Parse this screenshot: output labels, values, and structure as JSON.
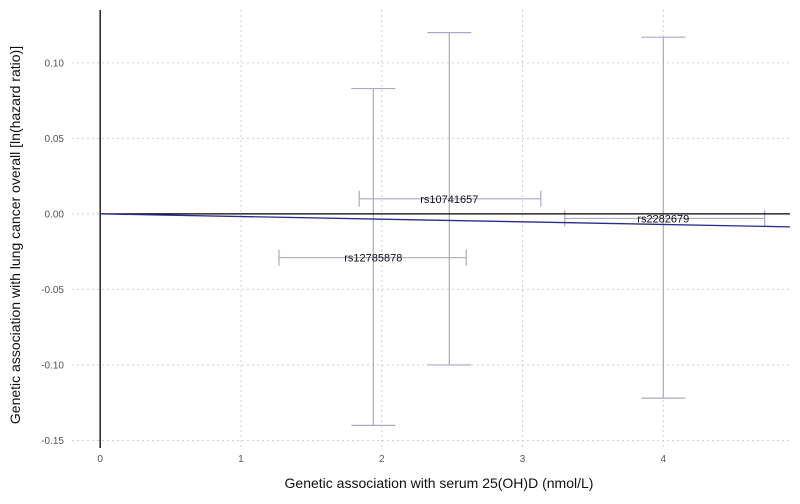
{
  "chart_data": {
    "type": "scatter",
    "title": "",
    "xlabel": "Genetic association with serum 25(OH)D (nmol/L)",
    "ylabel": "Genetic association with lung cancer overall [ln(hazard ratio)]",
    "xlim": [
      -0.2,
      4.9
    ],
    "ylim": [
      -0.155,
      0.135
    ],
    "x_ticks": [
      0,
      1,
      2,
      3,
      4
    ],
    "y_ticks": [
      -0.15,
      -0.1,
      -0.05,
      0.0,
      0.05,
      0.1
    ],
    "y_tick_labels": [
      "-0.15",
      "-0.10",
      "-0.05",
      "0.00",
      "0.05",
      "0.10"
    ],
    "grid": true,
    "colors": {
      "error_bars": "#a9a9c6",
      "fit_line": "#2b2b8c",
      "reference": "#000000"
    },
    "points": [
      {
        "label": "rs12785878",
        "x": 1.94,
        "y": -0.029,
        "x_low": 1.27,
        "x_high": 2.6,
        "y_low": -0.14,
        "y_high": 0.083
      },
      {
        "label": "rs10741657",
        "x": 2.48,
        "y": 0.01,
        "x_low": 1.84,
        "x_high": 3.13,
        "y_low": -0.1,
        "y_high": 0.12
      },
      {
        "label": "rs2282679",
        "x": 4.0,
        "y": -0.003,
        "x_low": 3.3,
        "x_high": 4.72,
        "y_low": -0.122,
        "y_high": 0.117
      }
    ],
    "fit_line": {
      "intercept": 0,
      "slope": -0.00175
    }
  }
}
